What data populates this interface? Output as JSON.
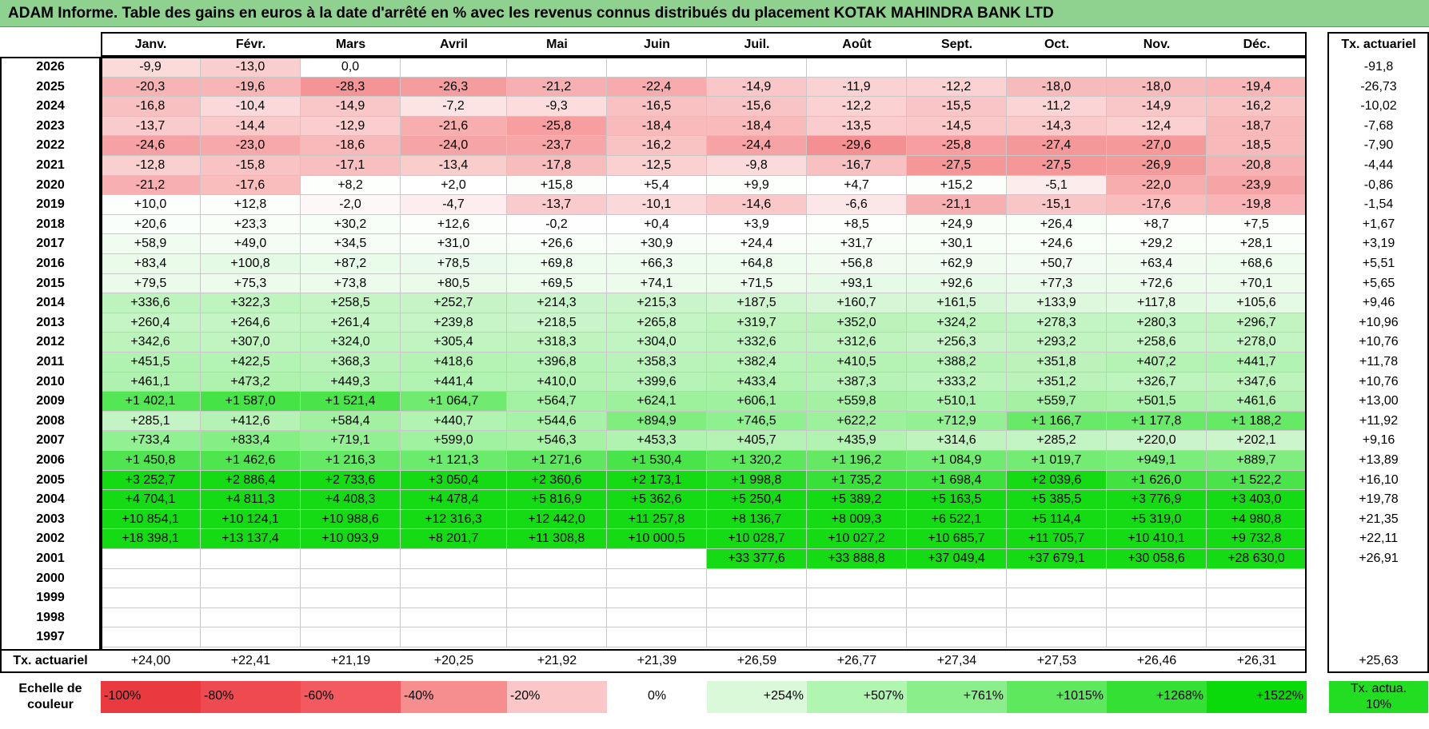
{
  "title": "ADAM Informe. Table des gains en euros à la date d'arrêté en % avec les revenus connus distribués du placement KOTAK MAHINDRA BANK LTD",
  "chart_data": {
    "type": "heatmap",
    "months": [
      "Janv.",
      "Févr.",
      "Mars",
      "Avril",
      "Mai",
      "Juin",
      "Juil.",
      "Août",
      "Sept.",
      "Oct.",
      "Nov.",
      "Déc."
    ],
    "rate_header": "Tx. actuariel",
    "rows": [
      {
        "year": "2026",
        "values": [
          "-9,9",
          "-13,0",
          "0,0",
          "",
          "",
          "",
          "",
          "",
          "",
          "",
          "",
          ""
        ],
        "rate": "-91,8"
      },
      {
        "year": "2025",
        "values": [
          "-20,3",
          "-19,6",
          "-28,3",
          "-26,3",
          "-21,2",
          "-22,4",
          "-14,9",
          "-11,9",
          "-12,2",
          "-18,0",
          "-18,0",
          "-19,4"
        ],
        "rate": "-26,73"
      },
      {
        "year": "2024",
        "values": [
          "-16,8",
          "-10,4",
          "-14,9",
          "-7,2",
          "-9,3",
          "-16,5",
          "-15,6",
          "-12,2",
          "-15,5",
          "-11,2",
          "-14,9",
          "-16,2"
        ],
        "rate": "-10,02"
      },
      {
        "year": "2023",
        "values": [
          "-13,7",
          "-14,4",
          "-12,9",
          "-21,6",
          "-25,8",
          "-18,4",
          "-18,4",
          "-13,5",
          "-14,5",
          "-14,3",
          "-12,4",
          "-18,7"
        ],
        "rate": "-7,68"
      },
      {
        "year": "2022",
        "values": [
          "-24,6",
          "-23,0",
          "-18,6",
          "-24,0",
          "-23,7",
          "-16,2",
          "-24,4",
          "-29,6",
          "-25,8",
          "-27,4",
          "-27,0",
          "-18,5"
        ],
        "rate": "-7,90"
      },
      {
        "year": "2021",
        "values": [
          "-12,8",
          "-15,8",
          "-17,1",
          "-13,4",
          "-17,8",
          "-12,5",
          "-9,8",
          "-16,7",
          "-27,5",
          "-27,5",
          "-26,9",
          "-20,8"
        ],
        "rate": "-4,44"
      },
      {
        "year": "2020",
        "values": [
          "-21,2",
          "-17,6",
          "+8,2",
          "+2,0",
          "+15,8",
          "+5,4",
          "+9,9",
          "+4,7",
          "+15,2",
          "-5,1",
          "-22,0",
          "-23,9"
        ],
        "rate": "-0,86"
      },
      {
        "year": "2019",
        "values": [
          "+10,0",
          "+12,8",
          "-2,0",
          "-4,7",
          "-13,7",
          "-10,1",
          "-14,6",
          "-6,6",
          "-21,1",
          "-15,1",
          "-17,6",
          "-19,8"
        ],
        "rate": "-1,54"
      },
      {
        "year": "2018",
        "values": [
          "+20,6",
          "+23,3",
          "+30,2",
          "+12,6",
          "-0,2",
          "+0,4",
          "+3,9",
          "+8,5",
          "+24,9",
          "+26,4",
          "+8,7",
          "+7,5"
        ],
        "rate": "+1,67"
      },
      {
        "year": "2017",
        "values": [
          "+58,9",
          "+49,0",
          "+34,5",
          "+31,0",
          "+26,6",
          "+30,9",
          "+24,4",
          "+31,7",
          "+30,1",
          "+24,6",
          "+29,2",
          "+28,1"
        ],
        "rate": "+3,19"
      },
      {
        "year": "2016",
        "values": [
          "+83,4",
          "+100,8",
          "+87,2",
          "+78,5",
          "+69,8",
          "+66,3",
          "+64,8",
          "+56,8",
          "+62,9",
          "+50,7",
          "+63,4",
          "+68,6"
        ],
        "rate": "+5,51"
      },
      {
        "year": "2015",
        "values": [
          "+79,5",
          "+75,3",
          "+73,8",
          "+80,5",
          "+69,5",
          "+74,1",
          "+71,5",
          "+93,1",
          "+92,6",
          "+77,3",
          "+72,6",
          "+70,1"
        ],
        "rate": "+5,65"
      },
      {
        "year": "2014",
        "values": [
          "+336,6",
          "+322,3",
          "+258,5",
          "+252,7",
          "+214,3",
          "+215,3",
          "+187,5",
          "+160,7",
          "+161,5",
          "+133,9",
          "+117,8",
          "+105,6"
        ],
        "rate": "+9,46"
      },
      {
        "year": "2013",
        "values": [
          "+260,4",
          "+264,6",
          "+261,4",
          "+239,8",
          "+218,5",
          "+265,8",
          "+319,7",
          "+352,0",
          "+324,2",
          "+278,3",
          "+280,3",
          "+296,7"
        ],
        "rate": "+10,96"
      },
      {
        "year": "2012",
        "values": [
          "+342,6",
          "+307,0",
          "+324,0",
          "+305,4",
          "+318,3",
          "+304,0",
          "+332,6",
          "+312,6",
          "+256,3",
          "+293,2",
          "+258,6",
          "+278,0"
        ],
        "rate": "+10,76"
      },
      {
        "year": "2011",
        "values": [
          "+451,5",
          "+422,5",
          "+368,3",
          "+418,6",
          "+396,8",
          "+358,3",
          "+382,4",
          "+410,5",
          "+388,2",
          "+351,8",
          "+407,2",
          "+441,7"
        ],
        "rate": "+11,78"
      },
      {
        "year": "2010",
        "values": [
          "+461,1",
          "+473,2",
          "+449,3",
          "+441,4",
          "+410,0",
          "+399,6",
          "+433,4",
          "+387,3",
          "+333,2",
          "+351,2",
          "+326,7",
          "+347,6"
        ],
        "rate": "+10,76"
      },
      {
        "year": "2009",
        "values": [
          "+1 402,1",
          "+1 587,0",
          "+1 521,4",
          "+1 064,7",
          "+564,7",
          "+624,1",
          "+606,1",
          "+559,8",
          "+510,1",
          "+559,7",
          "+501,5",
          "+461,6"
        ],
        "rate": "+13,00"
      },
      {
        "year": "2008",
        "values": [
          "+285,1",
          "+412,6",
          "+584,4",
          "+440,7",
          "+544,6",
          "+894,9",
          "+746,5",
          "+622,2",
          "+712,9",
          "+1 166,7",
          "+1 177,8",
          "+1 188,2"
        ],
        "rate": "+11,92"
      },
      {
        "year": "2007",
        "values": [
          "+733,4",
          "+833,4",
          "+719,1",
          "+599,0",
          "+546,3",
          "+453,3",
          "+405,7",
          "+435,9",
          "+314,6",
          "+285,2",
          "+220,0",
          "+202,1"
        ],
        "rate": "+9,16"
      },
      {
        "year": "2006",
        "values": [
          "+1 450,8",
          "+1 462,6",
          "+1 216,3",
          "+1 121,3",
          "+1 271,6",
          "+1 530,4",
          "+1 320,2",
          "+1 196,2",
          "+1 084,9",
          "+1 019,7",
          "+949,1",
          "+889,7"
        ],
        "rate": "+13,89"
      },
      {
        "year": "2005",
        "values": [
          "+3 252,7",
          "+2 886,4",
          "+2 733,6",
          "+3 050,4",
          "+2 360,6",
          "+2 173,1",
          "+1 998,8",
          "+1 735,2",
          "+1 698,4",
          "+2 039,6",
          "+1 626,0",
          "+1 522,2"
        ],
        "rate": "+16,10"
      },
      {
        "year": "2004",
        "values": [
          "+4 704,1",
          "+4 811,3",
          "+4 408,3",
          "+4 478,4",
          "+5 816,9",
          "+5 362,6",
          "+5 250,4",
          "+5 389,2",
          "+5 163,5",
          "+5 385,5",
          "+3 776,9",
          "+3 403,0"
        ],
        "rate": "+19,78"
      },
      {
        "year": "2003",
        "values": [
          "+10 854,1",
          "+10 124,1",
          "+10 988,6",
          "+12 316,3",
          "+12 442,0",
          "+11 257,8",
          "+8 136,7",
          "+8 009,3",
          "+6 522,1",
          "+5 114,4",
          "+5 319,0",
          "+4 980,8"
        ],
        "rate": "+21,35"
      },
      {
        "year": "2002",
        "values": [
          "+18 398,1",
          "+13 137,4",
          "+10 093,9",
          "+8 201,7",
          "+11 308,8",
          "+10 000,5",
          "+10 028,7",
          "+10 027,2",
          "+10 685,7",
          "+11 705,7",
          "+10 410,1",
          "+9 732,8"
        ],
        "rate": "+22,11"
      },
      {
        "year": "2001",
        "values": [
          "",
          "",
          "",
          "",
          "",
          "",
          "+33 377,6",
          "+33 888,8",
          "+37 049,4",
          "+37 679,1",
          "+30 058,6",
          "+28 630,0"
        ],
        "rate": "+26,91"
      },
      {
        "year": "2000",
        "values": [
          "",
          "",
          "",
          "",
          "",
          "",
          "",
          "",
          "",
          "",
          "",
          ""
        ],
        "rate": ""
      },
      {
        "year": "1999",
        "values": [
          "",
          "",
          "",
          "",
          "",
          "",
          "",
          "",
          "",
          "",
          "",
          ""
        ],
        "rate": ""
      },
      {
        "year": "1998",
        "values": [
          "",
          "",
          "",
          "",
          "",
          "",
          "",
          "",
          "",
          "",
          "",
          ""
        ],
        "rate": ""
      },
      {
        "year": "1997",
        "values": [
          "",
          "",
          "",
          "",
          "",
          "",
          "",
          "",
          "",
          "",
          "",
          ""
        ],
        "rate": ""
      }
    ],
    "footer": {
      "label": "Tx. actuariel",
      "values": [
        "+24,00",
        "+22,41",
        "+21,19",
        "+20,25",
        "+21,92",
        "+21,39",
        "+26,59",
        "+26,77",
        "+27,34",
        "+27,53",
        "+26,46",
        "+26,31"
      ],
      "total": "+25,63"
    },
    "scale": {
      "label": "Echelle de couleur",
      "items": [
        {
          "text": "-100%",
          "color": "#ea3a40"
        },
        {
          "text": "-80%",
          "color": "#ef4a50"
        },
        {
          "text": "-60%",
          "color": "#f25a5f"
        },
        {
          "text": "-40%",
          "color": "#f68d8f"
        },
        {
          "text": "-20%",
          "color": "#fbc6c7"
        },
        {
          "text": "0%",
          "color": "#ffffff"
        },
        {
          "text": "+254%",
          "color": "#d9f9d9"
        },
        {
          "text": "+507%",
          "color": "#b0f5b0"
        },
        {
          "text": "+761%",
          "color": "#8aef8a"
        },
        {
          "text": "+1015%",
          "color": "#5ee85e"
        },
        {
          "text": "+1268%",
          "color": "#33e033"
        },
        {
          "text": "+1522%",
          "color": "#0ad90a"
        }
      ],
      "rate_item": {
        "text": "Tx. actua. 10%",
        "color": "#22dd22"
      }
    }
  }
}
